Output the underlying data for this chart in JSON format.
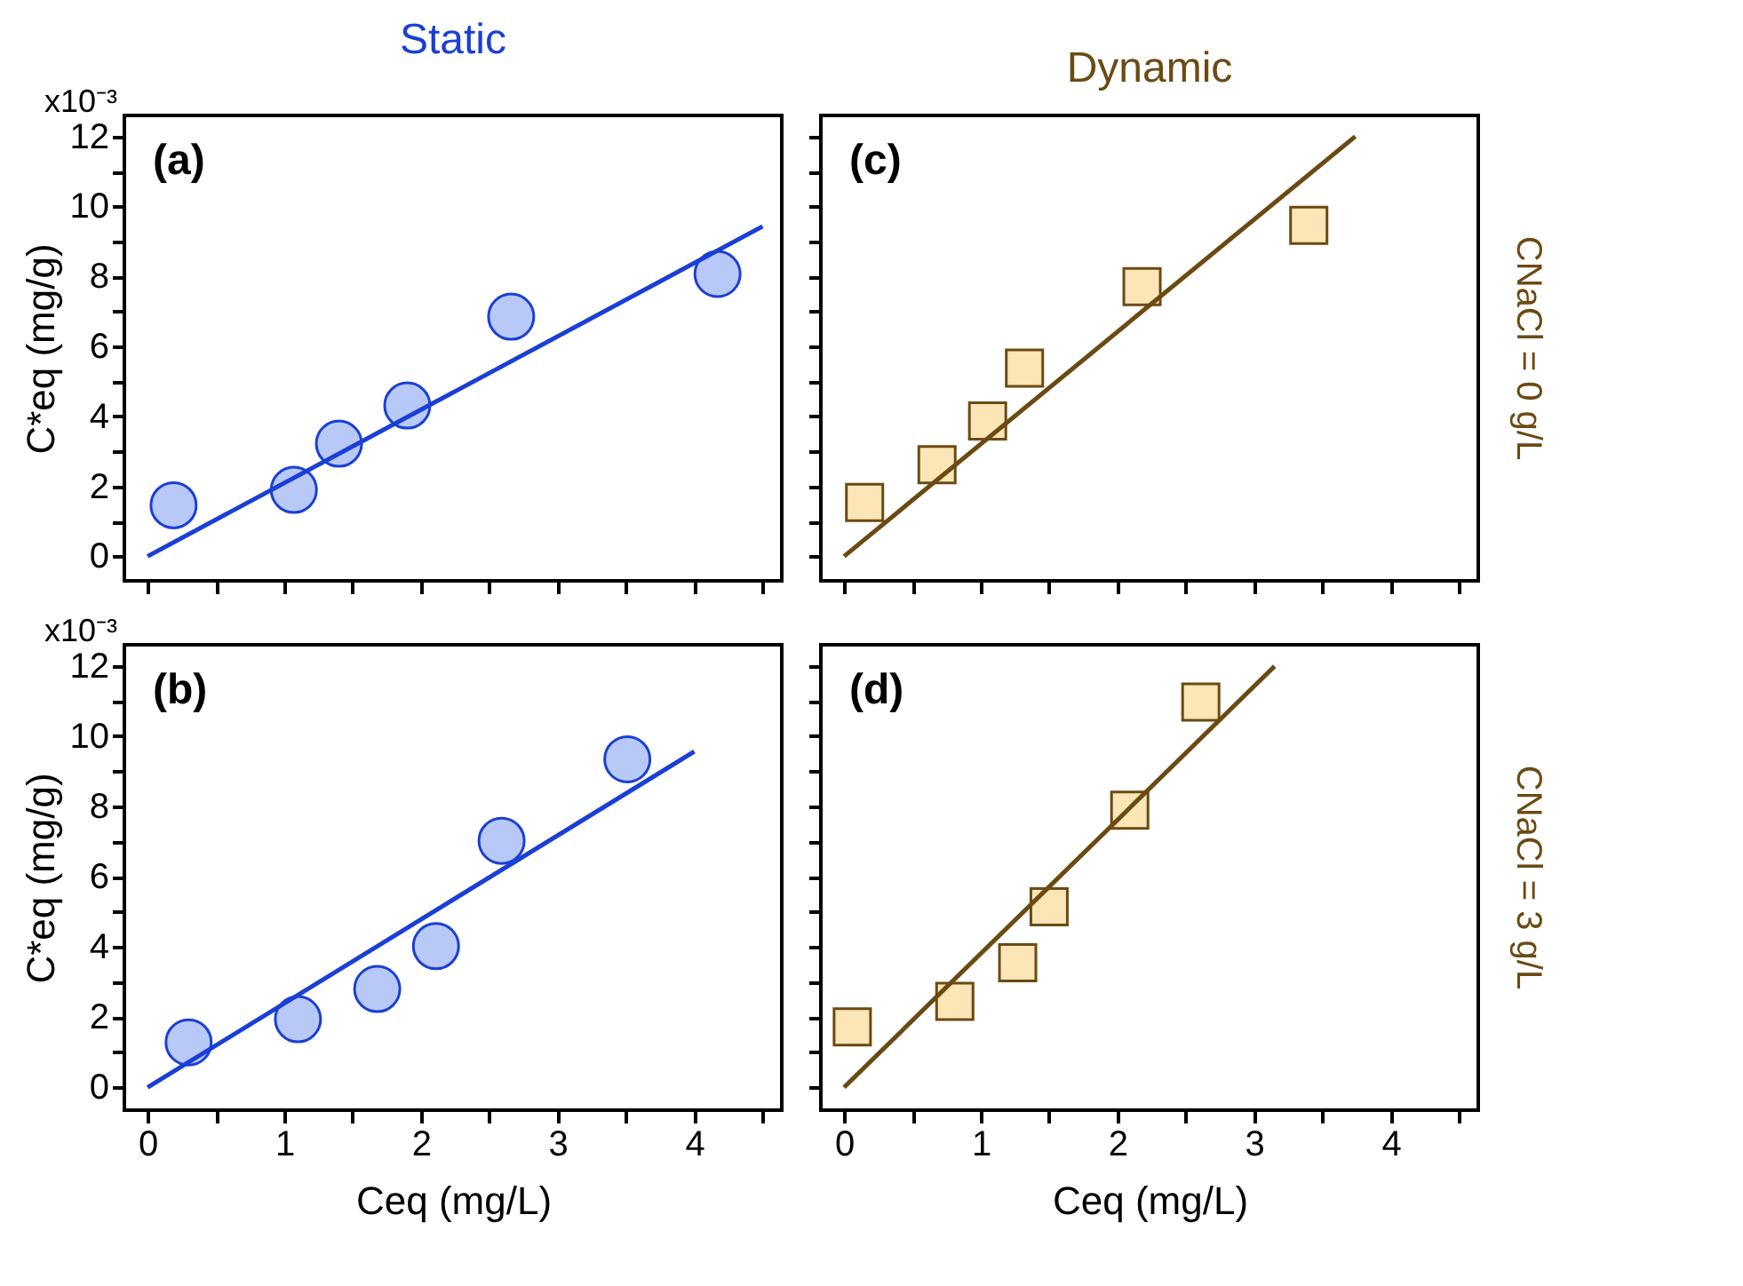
{
  "chart_data": [
    {
      "type": "scatter",
      "title": "Static",
      "ylabel": "C*eq  (mg/g)",
      "annotations": [
        "(a)",
        "x10⁻³"
      ],
      "tick_labels": "y",
      "xlim": [
        -0.17,
        4.64
      ],
      "xticks": [
        0,
        {
          "value": 0.5,
          "label": null
        },
        1,
        {
          "value": 1.5,
          "label": null
        },
        2,
        {
          "value": 2.5,
          "label": null
        },
        3,
        {
          "value": 3.5,
          "label": null
        },
        4,
        {
          "value": 4.5,
          "label": null
        }
      ],
      "ylim": [
        -0.7,
        12.6
      ],
      "yticks": [
        0,
        {
          "value": 1,
          "label": null
        },
        2,
        {
          "value": 3,
          "label": null
        },
        4,
        {
          "value": 5,
          "label": null
        },
        6,
        {
          "value": 7,
          "label": null
        },
        8,
        {
          "value": 9,
          "label": null
        },
        10,
        {
          "value": 11,
          "label": null
        },
        12
      ],
      "series": [
        {
          "marker": "circle",
          "color": "#b9c9f7",
          "x": [
            0.19,
            1.07,
            1.4,
            1.9,
            2.66,
            4.17
          ],
          "values": [
            1.46,
            1.9,
            3.22,
            4.31,
            6.85,
            8.07
          ]
        },
        {
          "type": "line",
          "color": "#1a3fd6",
          "x": [
            0,
            4.5
          ],
          "values": [
            0,
            9.43
          ]
        }
      ]
    },
    {
      "type": "scatter",
      "title": "Dynamic",
      "y2label": "CNaCl = 0 g/L",
      "annotations": [
        "(c)"
      ],
      "tick_labels": false,
      "xlim": [
        -0.17,
        4.64
      ],
      "xticks": [
        0,
        {
          "value": 0.5,
          "label": null
        },
        1,
        {
          "value": 1.5,
          "label": null
        },
        2,
        {
          "value": 2.5,
          "label": null
        },
        3,
        {
          "value": 3.5,
          "label": null
        },
        4,
        {
          "value": 4.5,
          "label": null
        }
      ],
      "ylim": [
        -0.7,
        12.6
      ],
      "yticks": [
        0,
        {
          "value": 1,
          "label": null
        },
        2,
        {
          "value": 3,
          "label": null
        },
        4,
        {
          "value": 5,
          "label": null
        },
        6,
        {
          "value": 7,
          "label": null
        },
        8,
        {
          "value": 9,
          "label": null
        },
        10,
        {
          "value": 11,
          "label": null
        },
        12
      ],
      "series": [
        {
          "marker": "square",
          "color": "#fce6b8",
          "x": [
            0.15,
            0.68,
            1.05,
            1.32,
            2.18,
            3.4
          ],
          "values": [
            1.54,
            2.62,
            3.87,
            5.38,
            7.71,
            9.46
          ]
        },
        {
          "type": "line",
          "color": "#6b4a12",
          "x": [
            0,
            3.74
          ],
          "values": [
            0,
            12.0
          ]
        }
      ]
    },
    {
      "type": "scatter",
      "xlabel": "Ceq (mg/L)",
      "ylabel": "C*eq  (mg/g)",
      "annotations": [
        "(b)",
        "x10⁻³"
      ],
      "xlim": [
        -0.17,
        4.64
      ],
      "xticks": [
        0,
        {
          "value": 0.5,
          "label": null
        },
        1,
        {
          "value": 1.5,
          "label": null
        },
        2,
        {
          "value": 2.5,
          "label": null
        },
        3,
        {
          "value": 3.5,
          "label": null
        },
        4,
        {
          "value": 4.5,
          "label": null
        }
      ],
      "ylim": [
        -0.65,
        12.6
      ],
      "yticks": [
        0,
        {
          "value": 1,
          "label": null
        },
        2,
        {
          "value": 3,
          "label": null
        },
        4,
        {
          "value": 5,
          "label": null
        },
        6,
        {
          "value": 7,
          "label": null
        },
        8,
        {
          "value": 9,
          "label": null
        },
        10,
        {
          "value": 11,
          "label": null
        },
        12
      ],
      "series": [
        {
          "marker": "circle",
          "color": "#b9c9f7",
          "x": [
            0.3,
            1.1,
            1.68,
            2.11,
            2.59,
            3.51
          ],
          "values": [
            1.28,
            1.94,
            2.8,
            4.02,
            7.02,
            9.34
          ]
        },
        {
          "type": "line",
          "color": "#1a3fd6",
          "x": [
            0,
            4.0
          ],
          "values": [
            0,
            9.56
          ]
        }
      ]
    },
    {
      "type": "scatter",
      "xlabel": "Ceq (mg/L)",
      "y2label": "CNaCl = 3 g/L",
      "annotations": [
        "(d)"
      ],
      "tick_labels": "x",
      "xlim": [
        -0.17,
        4.64
      ],
      "xticks": [
        0,
        {
          "value": 0.5,
          "label": null
        },
        1,
        {
          "value": 1.5,
          "label": null
        },
        2,
        {
          "value": 2.5,
          "label": null
        },
        3,
        {
          "value": 3.5,
          "label": null
        },
        4,
        {
          "value": 4.5,
          "label": null
        }
      ],
      "ylim": [
        -0.65,
        12.6
      ],
      "yticks": [
        0,
        {
          "value": 1,
          "label": null
        },
        2,
        {
          "value": 3,
          "label": null
        },
        4,
        {
          "value": 5,
          "label": null
        },
        6,
        {
          "value": 7,
          "label": null
        },
        8,
        {
          "value": 9,
          "label": null
        },
        10,
        {
          "value": 11,
          "label": null
        },
        12
      ],
      "series": [
        {
          "marker": "square",
          "color": "#fce6b8",
          "x": [
            0.06,
            0.81,
            1.27,
            1.5,
            2.09,
            2.61
          ],
          "values": [
            1.72,
            2.45,
            3.55,
            5.14,
            7.89,
            10.97
          ]
        },
        {
          "type": "line",
          "color": "#6b4a12",
          "x": [
            0,
            3.15
          ],
          "values": [
            0,
            11.99
          ]
        }
      ]
    }
  ]
}
